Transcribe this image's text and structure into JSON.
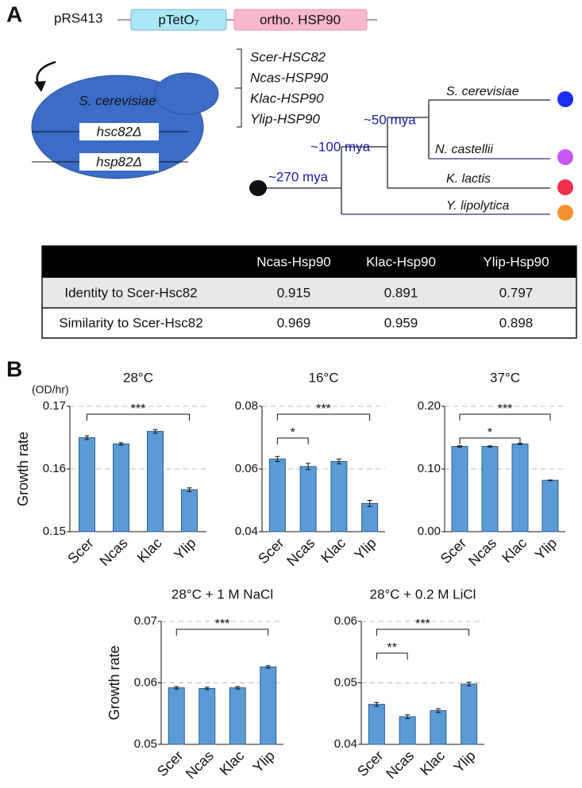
{
  "panel_labels": [
    "A",
    "B"
  ],
  "diagram": {
    "plasmid": "pRS413",
    "promoter": "pTetO₇",
    "insert": "ortho. HSP90",
    "cell": "S. cerevisiae",
    "deletions": [
      "hsc82Δ",
      "hsp82Δ"
    ],
    "genes": [
      "Scer-HSC82",
      "Ncas-HSP90",
      "Klac-HSP90",
      "Ylip-HSP90"
    ],
    "species": [
      "S. cerevisiae",
      "N. castellii",
      "K. lactis",
      "Y. lipolytica"
    ],
    "divergence": [
      "~50 mya",
      "~100 mya",
      "~270 mya"
    ]
  },
  "table": {
    "columns": [
      "Ncas-Hsp90",
      "Klac-Hsp90",
      "Ylip-Hsp90"
    ],
    "rows": [
      {
        "label": "Identity to Scer-Hsc82",
        "values": [
          0.915,
          0.891,
          0.797
        ]
      },
      {
        "label": "Similarity to Scer-Hsc82",
        "values": [
          0.969,
          0.959,
          0.898
        ]
      }
    ]
  },
  "chart_data": [
    {
      "type": "bar",
      "title": "28°C",
      "ylabel": "Growth rate",
      "yunit": "(OD/hr)",
      "categories": [
        "Scer",
        "Ncas",
        "Klac",
        "Ylip"
      ],
      "values": [
        0.165,
        0.164,
        0.166,
        0.1567
      ],
      "errors": [
        0.0003,
        0.0002,
        0.0003,
        0.0003
      ],
      "color": "#5b9bd5",
      "ylim": [
        0.15,
        0.17
      ],
      "yticks": [
        0.15,
        0.16,
        0.17
      ],
      "grid": true,
      "annotations": [
        {
          "text": "***",
          "from": "Scer",
          "to": "Ylip"
        }
      ]
    },
    {
      "type": "bar",
      "title": "16°C",
      "categories": [
        "Scer",
        "Ncas",
        "Klac",
        "Ylip"
      ],
      "values": [
        0.0632,
        0.0608,
        0.0624,
        0.049
      ],
      "errors": [
        0.0008,
        0.001,
        0.0008,
        0.001
      ],
      "color": "#5b9bd5",
      "ylim": [
        0.04,
        0.08
      ],
      "yticks": [
        0.04,
        0.06,
        0.08
      ],
      "grid": true,
      "annotations": [
        {
          "text": "*",
          "from": "Scer",
          "to": "Ncas"
        },
        {
          "text": "***",
          "from": "Scer",
          "to": "Ylip"
        }
      ]
    },
    {
      "type": "bar",
      "title": "37°C",
      "categories": [
        "Scer",
        "Ncas",
        "Klac",
        "Ylip"
      ],
      "values": [
        0.136,
        0.136,
        0.14,
        0.082
      ],
      "errors": [
        0.001,
        0.0008,
        0.001,
        0.0005
      ],
      "color": "#5b9bd5",
      "ylim": [
        0,
        0.2
      ],
      "yticks": [
        {
          "value": 0,
          "label": "0.00"
        },
        {
          "value": 0.1,
          "label": "0.10"
        },
        {
          "value": 0.2,
          "label": "0.20"
        }
      ],
      "grid": true,
      "annotations": [
        {
          "text": "*",
          "from": "Scer",
          "to": "Klac"
        },
        {
          "text": "***",
          "from": "Scer",
          "to": "Ylip"
        }
      ]
    },
    {
      "type": "bar",
      "title": "28°C + 1 M NaCl",
      "ylabel": "Growth rate",
      "categories": [
        "Scer",
        "Ncas",
        "Klac",
        "Ylip"
      ],
      "values": [
        0.0592,
        0.0591,
        0.0592,
        0.0626
      ],
      "errors": [
        0.0002,
        0.0002,
        0.0002,
        0.0002
      ],
      "color": "#5b9bd5",
      "ylim": [
        0.05,
        0.07
      ],
      "yticks": [
        0.05,
        0.06,
        0.07
      ],
      "grid": true,
      "annotations": [
        {
          "text": "***",
          "from": "Scer",
          "to": "Ylip"
        }
      ]
    },
    {
      "type": "bar",
      "title": "28°C + 0.2 M LiCl",
      "categories": [
        "Scer",
        "Ncas",
        "Klac",
        "Ylip"
      ],
      "values": [
        0.0465,
        0.0445,
        0.0455,
        0.0498
      ],
      "errors": [
        0.0003,
        0.0003,
        0.0003,
        0.0003
      ],
      "color": "#5b9bd5",
      "ylim": [
        0.04,
        0.06
      ],
      "yticks": [
        0.04,
        0.05,
        0.06
      ],
      "grid": true,
      "annotations": [
        {
          "text": "**",
          "from": "Scer",
          "to": "Ncas"
        },
        {
          "text": "***",
          "from": "Scer",
          "to": "Ylip"
        }
      ]
    }
  ]
}
